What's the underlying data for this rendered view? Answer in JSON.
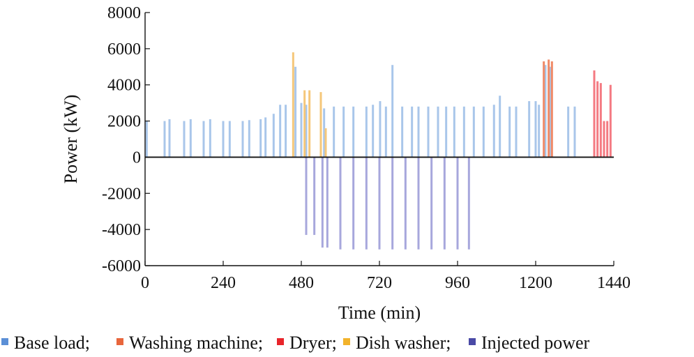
{
  "chart_data": {
    "type": "bar",
    "title": "",
    "xlabel": "Time (min)",
    "ylabel": "Power (kW)",
    "xlim": [
      0,
      1440
    ],
    "ylim": [
      -6000,
      8000
    ],
    "x_ticks": [
      0,
      240,
      480,
      720,
      960,
      1200,
      1440
    ],
    "y_ticks": [
      8000,
      6000,
      4000,
      2000,
      0,
      -2000,
      -4000,
      -6000
    ],
    "legend_position": "bottom",
    "colors": {
      "base": "#a9c6ea",
      "washing": "#f08a68",
      "dryer": "#f47a82",
      "dish": "#f5c77a",
      "injected": "#a7a7dc"
    },
    "legend": [
      {
        "label": "Base load;",
        "swatch": "#5b8fd6"
      },
      {
        "label": "Washing machine;",
        "swatch": "#e8663c"
      },
      {
        "label": "Dryer;",
        "swatch": "#e8242a"
      },
      {
        "label": "Dish washer;",
        "swatch": "#f2b32b"
      },
      {
        "label": "Injected power",
        "swatch": "#4a4aa6"
      }
    ],
    "series": [
      {
        "name": "Base load",
        "key": "base",
        "points": [
          [
            5,
            2000
          ],
          [
            60,
            2000
          ],
          [
            75,
            2100
          ],
          [
            120,
            2000
          ],
          [
            140,
            2100
          ],
          [
            180,
            2000
          ],
          [
            200,
            2100
          ],
          [
            240,
            2000
          ],
          [
            260,
            2000
          ],
          [
            300,
            2000
          ],
          [
            320,
            2050
          ],
          [
            355,
            2100
          ],
          [
            370,
            2200
          ],
          [
            395,
            2400
          ],
          [
            415,
            2900
          ],
          [
            432,
            2900
          ],
          [
            462,
            5000
          ],
          [
            480,
            3000
          ],
          [
            495,
            2900
          ],
          [
            540,
            2900
          ],
          [
            550,
            2700
          ],
          [
            580,
            2800
          ],
          [
            610,
            2800
          ],
          [
            640,
            2800
          ],
          [
            680,
            2800
          ],
          [
            700,
            2900
          ],
          [
            722,
            3100
          ],
          [
            740,
            2800
          ],
          [
            760,
            5100
          ],
          [
            790,
            2800
          ],
          [
            820,
            2800
          ],
          [
            840,
            2800
          ],
          [
            870,
            2800
          ],
          [
            900,
            2800
          ],
          [
            925,
            2800
          ],
          [
            950,
            2800
          ],
          [
            980,
            2800
          ],
          [
            1010,
            2800
          ],
          [
            1040,
            2800
          ],
          [
            1072,
            2900
          ],
          [
            1090,
            3400
          ],
          [
            1120,
            2800
          ],
          [
            1140,
            2800
          ],
          [
            1180,
            3100
          ],
          [
            1200,
            3100
          ],
          [
            1210,
            2900
          ],
          [
            1230,
            5100
          ],
          [
            1245,
            5000
          ],
          [
            1300,
            2800
          ],
          [
            1320,
            2800
          ],
          [
            1380,
            2900
          ]
        ]
      },
      {
        "name": "Washing machine",
        "key": "washing",
        "points": [
          [
            1225,
            5300
          ],
          [
            1240,
            5400
          ],
          [
            1250,
            5300
          ]
        ]
      },
      {
        "name": "Dryer",
        "key": "dryer",
        "points": [
          [
            1380,
            4800
          ],
          [
            1390,
            4200
          ],
          [
            1400,
            4100
          ],
          [
            1410,
            2000
          ],
          [
            1420,
            2000
          ],
          [
            1430,
            4000
          ]
        ]
      },
      {
        "name": "Dish washer",
        "key": "dish",
        "points": [
          [
            455,
            5800
          ],
          [
            490,
            3700
          ],
          [
            505,
            3700
          ],
          [
            540,
            3600
          ],
          [
            555,
            1600
          ]
        ]
      },
      {
        "name": "Injected power",
        "key": "injected",
        "points": [
          [
            495,
            -4300
          ],
          [
            520,
            -4300
          ],
          [
            545,
            -5000
          ],
          [
            560,
            -5000
          ],
          [
            600,
            -5100
          ],
          [
            640,
            -5100
          ],
          [
            680,
            -5100
          ],
          [
            720,
            -5100
          ],
          [
            760,
            -5100
          ],
          [
            800,
            -5100
          ],
          [
            840,
            -5100
          ],
          [
            880,
            -5100
          ],
          [
            920,
            -5100
          ],
          [
            960,
            -5100
          ],
          [
            995,
            -5100
          ]
        ]
      }
    ]
  }
}
